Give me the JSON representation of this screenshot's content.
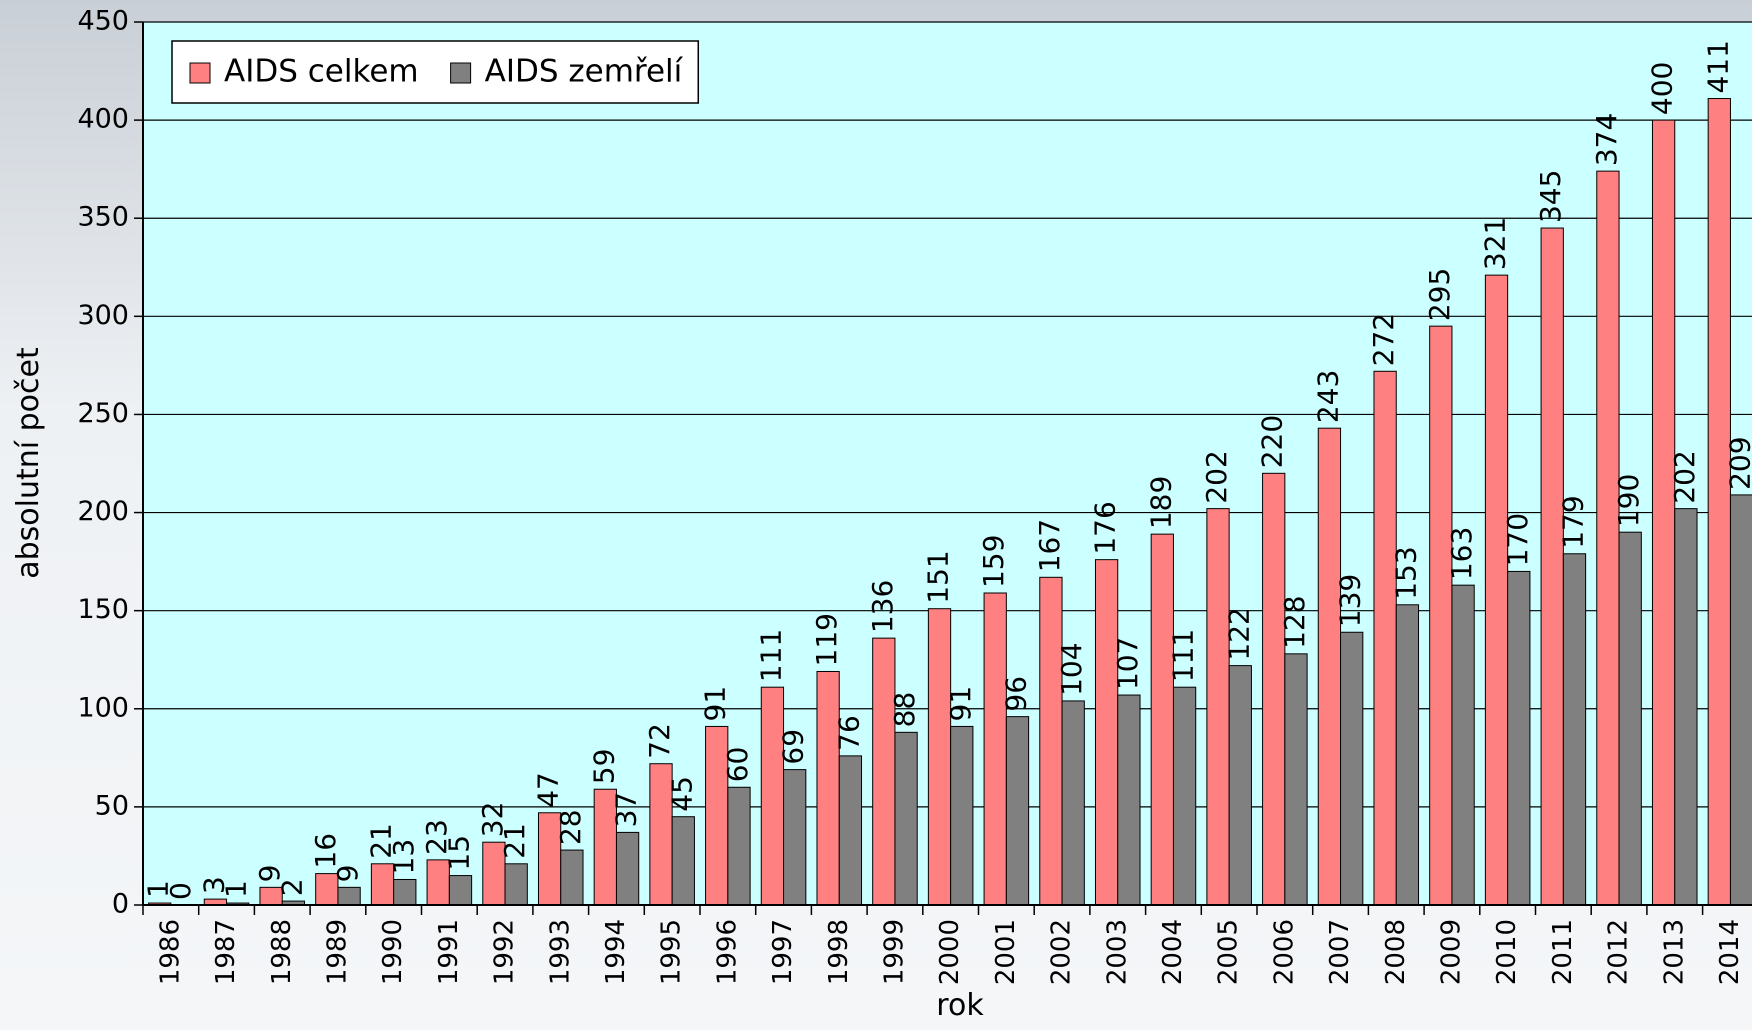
{
  "chart_data": {
    "type": "bar",
    "xlabel": "rok",
    "ylabel": "absolutní počet",
    "categories": [
      "1986",
      "1987",
      "1988",
      "1989",
      "1990",
      "1991",
      "1992",
      "1993",
      "1994",
      "1995",
      "1996",
      "1997",
      "1998",
      "1999",
      "2000",
      "2001",
      "2002",
      "2003",
      "2004",
      "2005",
      "2006",
      "2007",
      "2008",
      "2009",
      "2010",
      "2011",
      "2012",
      "2013",
      "2014"
    ],
    "series": [
      {
        "name": "AIDS celkem",
        "color": "#ff8080",
        "values": [
          1,
          3,
          9,
          16,
          21,
          23,
          32,
          47,
          59,
          72,
          91,
          111,
          119,
          136,
          151,
          159,
          167,
          176,
          189,
          202,
          220,
          243,
          272,
          295,
          321,
          345,
          374,
          400,
          411
        ]
      },
      {
        "name": "AIDS zemřelí",
        "color": "#808080",
        "values": [
          0,
          1,
          2,
          9,
          13,
          15,
          21,
          28,
          37,
          45,
          60,
          69,
          76,
          88,
          91,
          96,
          104,
          107,
          111,
          122,
          128,
          139,
          153,
          163,
          170,
          179,
          190,
          202,
          209
        ]
      }
    ],
    "ylim": [
      0,
      450
    ],
    "yticks": [
      0,
      50,
      100,
      150,
      200,
      250,
      300,
      350,
      400,
      450
    ],
    "grid": true,
    "legend": "top-left"
  }
}
